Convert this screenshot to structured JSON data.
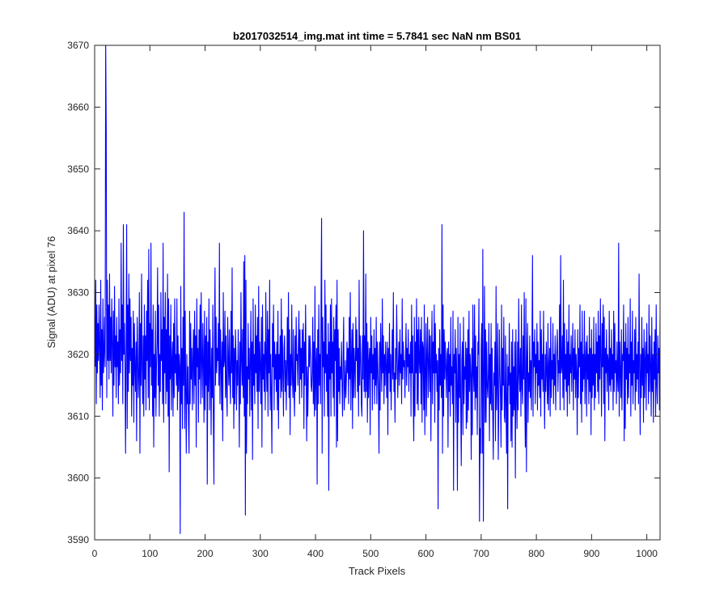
{
  "chart_data": {
    "type": "line",
    "title": "b2017032514_img.mat int time = 5.7841 sec  NaN nm BS01",
    "xlabel": "Track Pixels",
    "ylabel": "Signal (ADU) at pixel 76",
    "xlim": [
      0,
      1024
    ],
    "ylim": [
      3590,
      3670
    ],
    "xticks": [
      0,
      100,
      200,
      300,
      400,
      500,
      600,
      700,
      800,
      900,
      1000
    ],
    "yticks": [
      3590,
      3600,
      3610,
      3620,
      3630,
      3640,
      3650,
      3660,
      3670
    ],
    "grid": false,
    "line_color": "#0000ff",
    "series": [
      {
        "values": [
          3618,
          3632,
          3612,
          3628,
          3617,
          3625,
          3619,
          3628,
          3621,
          3613,
          3632,
          3615,
          3624,
          3611,
          3629,
          3617,
          3620,
          3626,
          3618,
          3671,
          3656,
          3613,
          3632,
          3619,
          3628,
          3616,
          3633,
          3619,
          3626,
          3617,
          3629,
          3622,
          3610,
          3627,
          3615,
          3631,
          3618,
          3623,
          3613,
          3626,
          3618,
          3622,
          3612,
          3629,
          3615,
          3624,
          3617,
          3638,
          3619,
          3628,
          3612,
          3641,
          3620,
          3625,
          3618,
          3604,
          3622,
          3641,
          3608,
          3628,
          3614,
          3633,
          3617,
          3629,
          3619,
          3626,
          3610,
          3621,
          3615,
          3627,
          3609,
          3625,
          3618,
          3614,
          3622,
          3606,
          3626,
          3620,
          3613,
          3617,
          3630,
          3604,
          3625,
          3615,
          3633,
          3618,
          3612,
          3623,
          3610,
          3628,
          3616,
          3623,
          3611,
          3627,
          3619,
          3632,
          3613,
          3637,
          3611,
          3625,
          3618,
          3638,
          3615,
          3624,
          3610,
          3628,
          3605,
          3620,
          3613,
          3627,
          3610,
          3618,
          3622,
          3634,
          3615,
          3628,
          3610,
          3620,
          3614,
          3630,
          3619,
          3624,
          3612,
          3638,
          3609,
          3626,
          3617,
          3630,
          3612,
          3624,
          3614,
          3633,
          3610,
          3629,
          3601,
          3623,
          3616,
          3628,
          3611,
          3619,
          3622,
          3610,
          3625,
          3613,
          3629,
          3617,
          3620,
          3615,
          3629,
          3611,
          3623,
          3614,
          3620,
          3618,
          3591,
          3631,
          3612,
          3621,
          3608,
          3626,
          3615,
          3643,
          3608,
          3627,
          3614,
          3604,
          3620,
          3612,
          3618,
          3609,
          3604,
          3627,
          3612,
          3625,
          3616,
          3621,
          3611,
          3619,
          3624,
          3612,
          3627,
          3615,
          3623,
          3605,
          3629,
          3618,
          3621,
          3609,
          3624,
          3616,
          3628,
          3612,
          3630,
          3619,
          3613,
          3625,
          3619,
          3609,
          3627,
          3611,
          3623,
          3615,
          3626,
          3599,
          3622,
          3614,
          3629,
          3611,
          3624,
          3618,
          3607,
          3621,
          3613,
          3628,
          3610,
          3599,
          3622,
          3634,
          3615,
          3626,
          3617,
          3621,
          3619,
          3625,
          3615,
          3638,
          3612,
          3624,
          3619,
          3611,
          3622,
          3606,
          3630,
          3618,
          3619,
          3627,
          3613,
          3623,
          3614,
          3610,
          3626,
          3619,
          3615,
          3624,
          3616,
          3612,
          3627,
          3617,
          3634,
          3613,
          3623,
          3608,
          3621,
          3612,
          3624,
          3620,
          3611,
          3619,
          3615,
          3624,
          3617,
          3605,
          3622,
          3612,
          3630,
          3619,
          3615,
          3624,
          3613,
          3635,
          3610,
          3636,
          3594,
          3632,
          3604,
          3618,
          3612,
          3625,
          3616,
          3621,
          3610,
          3619,
          3627,
          3611,
          3622,
          3603,
          3629,
          3615,
          3620,
          3612,
          3628,
          3617,
          3623,
          3614,
          3626,
          3608,
          3631,
          3614,
          3622,
          3618,
          3612,
          3626,
          3605,
          3628,
          3616,
          3620,
          3614,
          3622,
          3611,
          3630,
          3619,
          3614,
          3627,
          3610,
          3624,
          3617,
          3632,
          3611,
          3620,
          3613,
          3604,
          3625,
          3618,
          3628,
          3611,
          3622,
          3616,
          3620,
          3614,
          3622,
          3611,
          3627,
          3608,
          3620,
          3616,
          3623,
          3613,
          3629,
          3614,
          3624,
          3617,
          3610,
          3621,
          3623,
          3614,
          3619,
          3611,
          3618,
          3626,
          3615,
          3630,
          3613,
          3624,
          3607,
          3620,
          3615,
          3628,
          3617,
          3613,
          3624,
          3614,
          3610,
          3623,
          3614,
          3626,
          3619,
          3620,
          3615,
          3622,
          3627,
          3612,
          3624,
          3616,
          3621,
          3613,
          3624,
          3617,
          3625,
          3608,
          3622,
          3615,
          3628,
          3619,
          3606,
          3618,
          3610,
          3616,
          3623,
          3618,
          3623,
          3620,
          3615,
          3614,
          3617,
          3626,
          3612,
          3622,
          3610,
          3631,
          3611,
          3618,
          3621,
          3599,
          3624,
          3612,
          3628,
          3615,
          3620,
          3612,
          3628,
          3642,
          3604,
          3626,
          3618,
          3622,
          3610,
          3632,
          3617,
          3628,
          3614,
          3620,
          3610,
          3625,
          3598,
          3622,
          3616,
          3628,
          3610,
          3629,
          3617,
          3622,
          3613,
          3626,
          3610,
          3624,
          3619,
          3628,
          3605,
          3632,
          3606,
          3624,
          3614,
          3621,
          3612,
          3618,
          3616,
          3622,
          3615,
          3610,
          3620,
          3626,
          3611,
          3614,
          3619,
          3613,
          3616,
          3622,
          3617,
          3621,
          3612,
          3626,
          3616,
          3630,
          3611,
          3619,
          3624,
          3608,
          3625,
          3613,
          3621,
          3618,
          3613,
          3626,
          3619,
          3624,
          3614,
          3621,
          3610,
          3632,
          3615,
          3623,
          3620,
          3612,
          3610,
          3623,
          3616,
          3640,
          3614,
          3623,
          3613,
          3633,
          3614,
          3625,
          3609,
          3622,
          3613,
          3619,
          3621,
          3607,
          3626,
          3617,
          3623,
          3611,
          3620,
          3616,
          3624,
          3612,
          3621,
          3615,
          3626,
          3612,
          3622,
          3618,
          3613,
          3604,
          3622,
          3611,
          3625,
          3619,
          3614,
          3629,
          3617,
          3623,
          3612,
          3620,
          3615,
          3622,
          3618,
          3613,
          3622,
          3607,
          3621,
          3617,
          3625,
          3614,
          3620,
          3611,
          3618,
          3624,
          3616,
          3630,
          3614,
          3617,
          3609,
          3621,
          3616,
          3628,
          3620,
          3613,
          3618,
          3622,
          3615,
          3624,
          3617,
          3620,
          3612,
          3629,
          3616,
          3622,
          3618,
          3619,
          3613,
          3620,
          3625,
          3615,
          3621,
          3618,
          3624,
          3614,
          3620,
          3617,
          3622,
          3610,
          3628,
          3617,
          3623,
          3612,
          3606,
          3626,
          3610,
          3622,
          3617,
          3629,
          3612,
          3624,
          3611,
          3626,
          3619,
          3617,
          3624,
          3612,
          3626,
          3609,
          3622,
          3621,
          3611,
          3628,
          3607,
          3617,
          3625,
          3610,
          3620,
          3626,
          3613,
          3618,
          3624,
          3614,
          3623,
          3606,
          3619,
          3627,
          3612,
          3622,
          3617,
          3628,
          3609,
          3625,
          3617,
          3620,
          3614,
          3619,
          3595,
          3621,
          3611,
          3624,
          3615,
          3620,
          3613,
          3641,
          3604,
          3628,
          3610,
          3624,
          3616,
          3622,
          3618,
          3613,
          3620,
          3621,
          3605,
          3622,
          3614,
          3620,
          3610,
          3626,
          3615,
          3618,
          3612,
          3627,
          3598,
          3620,
          3617,
          3624,
          3609,
          3621,
          3615,
          3598,
          3626,
          3609,
          3620,
          3613,
          3625,
          3611,
          3602,
          3619,
          3622,
          3607,
          3626,
          3612,
          3618,
          3616,
          3622,
          3608,
          3621,
          3609,
          3624,
          3611,
          3627,
          3614,
          3620,
          3617,
          3603,
          3621,
          3607,
          3628,
          3617,
          3614,
          3628,
          3611,
          3623,
          3613,
          3618,
          3607,
          3622,
          3620,
          3629,
          3593,
          3608,
          3604,
          3621,
          3625,
          3604,
          3637,
          3593,
          3617,
          3631,
          3609,
          3624,
          3609,
          3622,
          3615,
          3613,
          3617,
          3625,
          3606,
          3620,
          3612,
          3625,
          3611,
          3621,
          3610,
          3603,
          3617,
          3615,
          3622,
          3606,
          3631,
          3611,
          3616,
          3625,
          3603,
          3612,
          3624,
          3617,
          3613,
          3605,
          3628,
          3611,
          3621,
          3615,
          3626,
          3610,
          3609,
          3623,
          3612,
          3604,
          3620,
          3595,
          3618,
          3615,
          3625,
          3612,
          3617,
          3606,
          3622,
          3605,
          3624,
          3610,
          3618,
          3611,
          3622,
          3600,
          3624,
          3614,
          3608,
          3622,
          3611,
          3629,
          3617,
          3614,
          3621,
          3610,
          3628,
          3615,
          3612,
          3623,
          3616,
          3630,
          3613,
          3605,
          3629,
          3601,
          3619,
          3625,
          3609,
          3617,
          3614,
          3623,
          3613,
          3619,
          3611,
          3621,
          3636,
          3610,
          3622,
          3618,
          3624,
          3612,
          3620,
          3617,
          3625,
          3611,
          3622,
          3615,
          3619,
          3613,
          3627,
          3610,
          3624,
          3616,
          3620,
          3614,
          3627,
          3615,
          3608,
          3620,
          3614,
          3622,
          3617,
          3612,
          3625,
          3611,
          3618,
          3621,
          3610,
          3626,
          3613,
          3619,
          3616,
          3625,
          3612,
          3620,
          3615,
          3623,
          3611,
          3618,
          3621,
          3624,
          3614,
          3619,
          3617,
          3628,
          3611,
          3636,
          3617,
          3618,
          3623,
          3613,
          3632,
          3611,
          3625,
          3616,
          3620,
          3614,
          3624,
          3610,
          3622,
          3615,
          3628,
          3612,
          3620,
          3617,
          3623,
          3614,
          3619,
          3625,
          3611,
          3621,
          3616,
          3624,
          3613,
          3620,
          3617,
          3607,
          3624,
          3613,
          3621,
          3618,
          3628,
          3612,
          3622,
          3609,
          3627,
          3614,
          3620,
          3616,
          3627,
          3612,
          3619,
          3622,
          3610,
          3623,
          3616,
          3620,
          3612,
          3626,
          3614,
          3621,
          3607,
          3624,
          3613,
          3620,
          3615,
          3626,
          3611,
          3620,
          3613,
          3625,
          3617,
          3622,
          3614,
          3627,
          3612,
          3623,
          3616,
          3629,
          3619,
          3610,
          3625,
          3618,
          3628,
          3612,
          3626,
          3606,
          3621,
          3617,
          3624,
          3614,
          3620,
          3619,
          3611,
          3627,
          3615,
          3621,
          3614,
          3624,
          3616,
          3620,
          3611,
          3627,
          3614,
          3625,
          3617,
          3619,
          3612,
          3622,
          3616,
          3614,
          3638,
          3610,
          3622,
          3617,
          3613,
          3624,
          3611,
          3620,
          3619,
          3628,
          3606,
          3622,
          3608,
          3625,
          3616,
          3621,
          3612,
          3626,
          3613,
          3620,
          3617,
          3629,
          3610,
          3622,
          3615,
          3627,
          3612,
          3619,
          3617,
          3624,
          3611,
          3626,
          3614,
          3620,
          3616,
          3622,
          3612,
          3633,
          3618,
          3607,
          3620,
          3613,
          3626,
          3615,
          3621,
          3609,
          3624,
          3613,
          3619,
          3622,
          3611,
          3625,
          3617,
          3620,
          3612,
          3628,
          3614,
          3623,
          3618,
          3610,
          3626,
          3614,
          3620,
          3609,
          3622,
          3616,
          3624,
          3610,
          3628,
          3615,
          3612,
          3623,
          3617,
          3621,
          3611,
          3626,
          3614,
          3635,
          3610,
          3634,
          3611,
          3624,
          3607,
          3627,
          3612,
          3630,
          3606,
          3626,
          3616
        ]
      }
    ]
  }
}
